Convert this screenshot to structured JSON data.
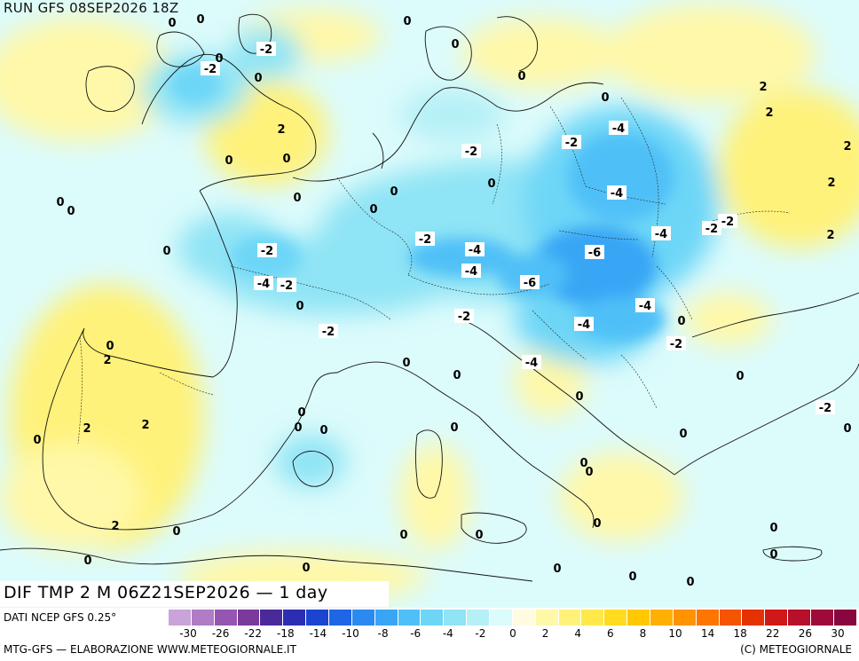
{
  "header": {
    "run_label": "RUN GFS 08SEP2026 18Z"
  },
  "map": {
    "title": "DIF TMP 2 M 06Z21SEP2026 — 1 day",
    "contour_labels": [
      {
        "text": "-2"
      },
      {
        "text": "-2"
      },
      {
        "text": "0"
      },
      {
        "text": "0"
      },
      {
        "text": "0"
      },
      {
        "text": "0"
      },
      {
        "text": "2"
      },
      {
        "text": "0"
      },
      {
        "text": "0"
      },
      {
        "text": "0"
      },
      {
        "text": "0"
      },
      {
        "text": "0"
      },
      {
        "text": "0"
      },
      {
        "text": "0"
      },
      {
        "text": "0"
      },
      {
        "text": "0"
      },
      {
        "text": "2"
      },
      {
        "text": "2"
      },
      {
        "text": "2"
      },
      {
        "text": "2"
      },
      {
        "text": "2"
      },
      {
        "text": "-2"
      },
      {
        "text": "-4"
      },
      {
        "text": "-2"
      },
      {
        "text": "-4"
      },
      {
        "text": "0"
      },
      {
        "text": "0"
      },
      {
        "text": "-2"
      },
      {
        "text": "-4"
      },
      {
        "text": "-4"
      },
      {
        "text": "-2"
      },
      {
        "text": "-4"
      },
      {
        "text": "-6"
      },
      {
        "text": "-6"
      },
      {
        "text": "-4"
      },
      {
        "text": "-4"
      },
      {
        "text": "-2"
      },
      {
        "text": "-2"
      },
      {
        "text": "-2"
      },
      {
        "text": "-4"
      },
      {
        "text": "-2"
      },
      {
        "text": "-2"
      },
      {
        "text": "-4"
      },
      {
        "text": "-2"
      },
      {
        "text": "0"
      },
      {
        "text": "0"
      },
      {
        "text": "0"
      },
      {
        "text": "2"
      },
      {
        "text": "0"
      },
      {
        "text": "2"
      },
      {
        "text": "2"
      },
      {
        "text": "0"
      },
      {
        "text": "2"
      },
      {
        "text": "0"
      },
      {
        "text": "0"
      },
      {
        "text": "0"
      },
      {
        "text": "0"
      },
      {
        "text": "-2"
      },
      {
        "text": "0"
      },
      {
        "text": "0"
      },
      {
        "text": "0"
      },
      {
        "text": "0"
      },
      {
        "text": "0"
      },
      {
        "text": "0"
      },
      {
        "text": "0"
      },
      {
        "text": "0"
      },
      {
        "text": "0"
      },
      {
        "text": "0"
      },
      {
        "text": "0"
      },
      {
        "text": "0"
      },
      {
        "text": "0"
      },
      {
        "text": "0"
      },
      {
        "text": "0"
      },
      {
        "text": "0"
      },
      {
        "text": "0"
      },
      {
        "text": "0"
      },
      {
        "text": "0"
      },
      {
        "text": "0"
      }
    ]
  },
  "footer": {
    "data_source": "DATI NCEP GFS 0.25°",
    "credit": "MTG-GFS — ELABORAZIONE WWW.METEOGIORNALE.IT",
    "copyright": "(C) METEOGIORNALE"
  },
  "legend": {
    "colors": [
      "#c9a3d9",
      "#b07cc6",
      "#9456b0",
      "#7a3a9c",
      "#4a2a9a",
      "#2b2db3",
      "#1b45d1",
      "#1f66e6",
      "#2a8af2",
      "#38a6f5",
      "#4fc0f7",
      "#6dd6f7",
      "#8fe4f5",
      "#b5f0f7",
      "#dcfbfb",
      "#fffbe0",
      "#fff8a8",
      "#fff27a",
      "#ffe94a",
      "#ffdc1f",
      "#ffc800",
      "#ffb000",
      "#ff9300",
      "#ff7500",
      "#f55400",
      "#e63200",
      "#d01818",
      "#b80f2a",
      "#9e0a3a",
      "#88073f"
    ],
    "ticks": [
      "-30",
      "-26",
      "-22",
      "-18",
      "-14",
      "-10",
      "-8",
      "-6",
      "-4",
      "-2",
      "0",
      "2",
      "4",
      "6",
      "8",
      "10",
      "14",
      "18",
      "22",
      "26",
      "30"
    ]
  }
}
